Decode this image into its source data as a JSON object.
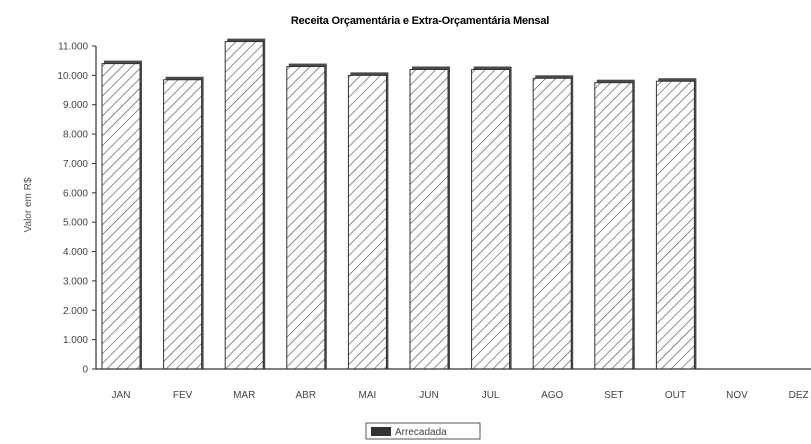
{
  "chart_data": {
    "type": "bar",
    "title": "Receita Orçamentária e Extra-Orçamentária Mensal",
    "xlabel": "",
    "ylabel": "Valor em R$",
    "categories": [
      "JAN",
      "FEV",
      "MAR",
      "ABR",
      "MAI",
      "JUN",
      "JUL",
      "AGO",
      "SET",
      "OUT",
      "NOV",
      "DEZ"
    ],
    "series": [
      {
        "name": "Arrecadada",
        "values": [
          10400,
          9850,
          11150,
          10300,
          10000,
          10200,
          10200,
          9900,
          9750,
          9800,
          0,
          0
        ]
      }
    ],
    "ylim": [
      0,
      11000
    ],
    "yticks": [
      "0",
      "1.000",
      "2.000",
      "3.000",
      "4.000",
      "5.000",
      "6.000",
      "7.000",
      "8.000",
      "9.000",
      "10.000",
      "11.000"
    ],
    "grid": false,
    "legend_position": "bottom-center",
    "colors": {
      "bar_fill": "#ffffff",
      "bar_hatch": "#555555",
      "bar_edge": "#333333",
      "axis": "#333333"
    }
  }
}
